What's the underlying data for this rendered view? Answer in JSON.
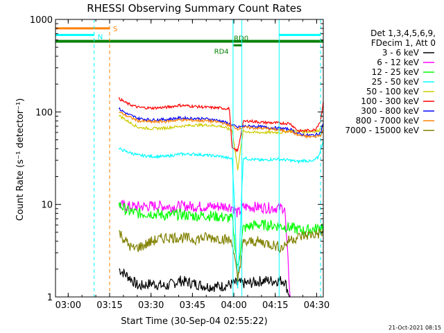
{
  "chart_data": {
    "type": "line",
    "title": "RHESSI Observing Summary Count Rates",
    "xlabel": "Start Time (30-Sep-04 02:55:22)",
    "ylabel": "Count Rate (s⁻¹ detector⁻¹)",
    "y_scale": "log",
    "ylim": [
      1,
      1000
    ],
    "x_unit": "minutes after 02:55:22",
    "xlim": [
      0,
      97
    ],
    "x_ticks": [
      {
        "label": "03:00",
        "value": 4.6
      },
      {
        "label": "03:15",
        "value": 19.6
      },
      {
        "label": "03:30",
        "value": 34.6
      },
      {
        "label": "03:45",
        "value": 49.6
      },
      {
        "label": "04:00",
        "value": 64.6
      },
      {
        "label": "04:15",
        "value": 79.6
      },
      {
        "label": "04:30",
        "value": 94.6
      }
    ],
    "y_ticks": [
      {
        "label": "1",
        "value": 1
      },
      {
        "label": "10",
        "value": 10
      },
      {
        "label": "100",
        "value": 100
      },
      {
        "label": "1000",
        "value": 1000
      }
    ],
    "legend": {
      "placement": "right",
      "header": [
        "Det 1,3,4,5,6,9,",
        "FDecim 1, Att 0"
      ]
    },
    "series": [
      {
        "name": "3 - 6 keV",
        "color": "#000000",
        "x": [
          23,
          27,
          30,
          35,
          40,
          45,
          50,
          55,
          60,
          65,
          70,
          75,
          80,
          83,
          84,
          85
        ],
        "y": [
          2.0,
          1.6,
          1.3,
          1.4,
          1.3,
          1.5,
          1.4,
          1.3,
          1.3,
          1.4,
          1.4,
          1.5,
          1.5,
          1.5,
          1.2,
          1.0
        ]
      },
      {
        "name": "6 - 12 keV",
        "color": "#ff00ff",
        "x": [
          23,
          27,
          32,
          37,
          42,
          47,
          52,
          57,
          62,
          64,
          66,
          68,
          72,
          77,
          80,
          83,
          84,
          85
        ],
        "y": [
          9.8,
          9.5,
          9.5,
          9.7,
          9.4,
          9.6,
          9.5,
          9.5,
          9.6,
          9.4,
          8.0,
          9.4,
          9.4,
          9.2,
          9.2,
          9.2,
          3.0,
          1.0
        ]
      },
      {
        "name": "12 - 25 keV",
        "color": "#00ff00",
        "x": [
          23,
          26,
          30,
          35,
          40,
          45,
          50,
          55,
          60,
          64,
          66,
          68,
          72,
          77,
          82,
          85,
          90,
          95,
          97
        ],
        "y": [
          10.0,
          8.5,
          8.0,
          8.0,
          7.6,
          7.8,
          7.5,
          7.6,
          7.3,
          7.0,
          2.0,
          5.5,
          6.0,
          6.0,
          5.8,
          5.6,
          5.2,
          5.5,
          6.0
        ]
      },
      {
        "name": "25 - 50 keV",
        "color": "#00ffff",
        "x": [
          23,
          26,
          30,
          35,
          40,
          45,
          50,
          55,
          60,
          64,
          65,
          66,
          68,
          70,
          75,
          80,
          85,
          88,
          90,
          93,
          95,
          96,
          97
        ],
        "y": [
          40,
          37,
          34,
          33,
          33,
          35,
          35,
          34,
          33,
          31,
          8,
          1.2,
          32,
          31,
          30,
          31,
          30,
          29,
          30,
          29,
          32,
          38,
          50
        ]
      },
      {
        "name": "50 - 100 keV",
        "color": "#cccc00",
        "x": [
          23,
          26,
          30,
          35,
          40,
          45,
          50,
          55,
          60,
          64,
          66,
          68,
          72,
          77,
          82,
          85,
          90,
          95,
          97
        ],
        "y": [
          92,
          80,
          68,
          66,
          67,
          70,
          72,
          72,
          70,
          63,
          24,
          62,
          60,
          60,
          60,
          63,
          61,
          62,
          70
        ]
      },
      {
        "name": "100 - 300 keV",
        "color": "#ff0000",
        "x": [
          23,
          26,
          30,
          35,
          40,
          45,
          50,
          55,
          60,
          63,
          64,
          66,
          68,
          70,
          75,
          80,
          85,
          88,
          91,
          94,
          96,
          97
        ],
        "y": [
          140,
          123,
          112,
          110,
          112,
          118,
          115,
          112,
          110,
          108,
          40,
          38,
          78,
          80,
          77,
          76,
          75,
          62,
          63,
          64,
          80,
          130
        ]
      },
      {
        "name": "300 - 800 keV",
        "color": "#0000ff",
        "x": [
          23,
          26,
          30,
          35,
          40,
          45,
          50,
          55,
          60,
          64,
          66,
          68,
          72,
          77,
          82,
          85,
          88,
          91,
          94,
          96,
          97
        ],
        "y": [
          108,
          95,
          85,
          82,
          83,
          86,
          85,
          84,
          80,
          72,
          68,
          70,
          70,
          68,
          66,
          65,
          58,
          56,
          56,
          60,
          75
        ]
      },
      {
        "name": "800 - 7000 keV",
        "color": "#ff8000",
        "x": [
          23,
          26,
          30,
          35,
          40,
          45,
          50,
          55,
          60,
          64,
          66,
          68,
          72,
          77,
          82,
          85,
          88,
          91,
          94,
          96,
          97
        ],
        "y": [
          100,
          90,
          80,
          78,
          79,
          82,
          81,
          80,
          77,
          70,
          66,
          68,
          67,
          66,
          63,
          62,
          56,
          54,
          54,
          56,
          65
        ]
      },
      {
        "name": "7000 - 15000 keV",
        "color": "#808000",
        "x": [
          23,
          26,
          28,
          32,
          35,
          40,
          45,
          50,
          55,
          60,
          64,
          66,
          68,
          72,
          77,
          82,
          85,
          90,
          95,
          97
        ],
        "y": [
          5.0,
          3.8,
          3.3,
          3.6,
          4.0,
          4.4,
          4.4,
          4.2,
          4.4,
          4.3,
          4.0,
          1.5,
          3.8,
          4.0,
          3.8,
          3.4,
          4.2,
          4.6,
          4.8,
          5.0
        ]
      }
    ],
    "annotations": [
      {
        "label": "S",
        "color": "#ff8000",
        "x_start": 0,
        "x_end": 19.6,
        "y": 800
      },
      {
        "label": "N",
        "color": "#00ffff",
        "x_start": 0,
        "x_end": 14,
        "y": 680,
        "x_end_2": 81,
        "x_start_2": 81,
        "x_restart": 81,
        "x_stop": 96
      },
      {
        "label": "RD0",
        "color": "#008000",
        "x_start": 0,
        "x_end": 97,
        "y": 580
      },
      {
        "label": "RD4",
        "color": "#008000",
        "x_start": 64.5,
        "x_end": 67.5,
        "y": 525
      }
    ],
    "vlines": [
      {
        "color": "#00ffff",
        "style": "dashed",
        "x": 14
      },
      {
        "color": "#ff8000",
        "style": "dashed",
        "x": 19.6
      },
      {
        "color": "#00ffff",
        "style": "solid",
        "x": 64.3
      },
      {
        "color": "#00ffff",
        "style": "solid",
        "x": 67.5
      },
      {
        "color": "#00ffff",
        "style": "solid",
        "x": 81
      },
      {
        "color": "#00ffff",
        "style": "dashed",
        "x": 96
      }
    ],
    "grid": false
  },
  "footer": {
    "date_stamp": "21-Oct-2021 08:15"
  }
}
